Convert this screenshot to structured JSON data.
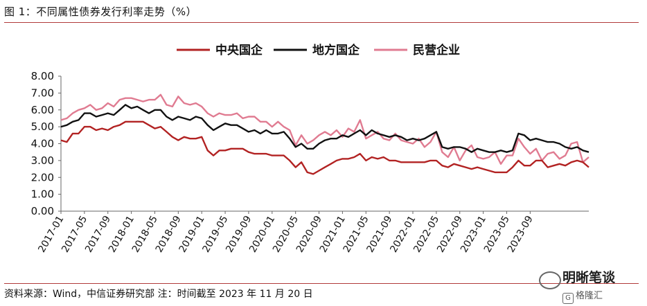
{
  "figure": {
    "title": "图 1：不同属性债券发行利率走势（%）",
    "source": "资料来源：Wind，中信证券研究部  注：时间截至 2023 年 11 月 20 日"
  },
  "watermark": {
    "name": "明晰笔谈",
    "sub": "格隆汇",
    "icon": "chat-bubble-icon"
  },
  "chart_data": {
    "type": "line",
    "title": "",
    "xlabel": "",
    "ylabel": "",
    "ylim": [
      0,
      8
    ],
    "yticks": [
      "0.00",
      "1.00",
      "2.00",
      "3.00",
      "4.00",
      "5.00",
      "6.00",
      "7.00",
      "8.00"
    ],
    "x_start": "2017-01",
    "xtick_labels": [
      "2017-01",
      "2017-05",
      "2017-09",
      "2018-01",
      "2018-05",
      "2018-09",
      "2019-01",
      "2019-05",
      "2019-09",
      "2020-01",
      "2020-05",
      "2020-09",
      "2021-01",
      "2021-05",
      "2021-09",
      "2022-01",
      "2022-05",
      "2022-09",
      "2023-01",
      "2023-05",
      "2023-09"
    ],
    "grid": false,
    "legend_position": "top-center",
    "series": [
      {
        "name": "中央国企",
        "color": "#b22222",
        "values": [
          4.2,
          4.1,
          4.6,
          4.6,
          5.0,
          5.0,
          4.8,
          4.9,
          4.8,
          5.0,
          5.1,
          5.3,
          5.3,
          5.3,
          5.3,
          5.1,
          4.9,
          5.0,
          4.7,
          4.4,
          4.2,
          4.4,
          4.3,
          4.3,
          4.4,
          3.6,
          3.3,
          3.6,
          3.6,
          3.7,
          3.7,
          3.7,
          3.5,
          3.4,
          3.4,
          3.4,
          3.3,
          3.3,
          3.3,
          3.0,
          2.6,
          2.9,
          2.3,
          2.2,
          2.4,
          2.6,
          2.8,
          3.0,
          3.1,
          3.1,
          3.2,
          3.4,
          3.0,
          3.2,
          3.1,
          3.2,
          3.0,
          3.0,
          2.9,
          2.9,
          2.9,
          2.9,
          2.9,
          3.0,
          3.0,
          2.7,
          2.6,
          2.8,
          2.7,
          2.6,
          2.5,
          2.6,
          2.5,
          2.4,
          2.3,
          2.3,
          2.3,
          2.6,
          3.0,
          2.7,
          2.7,
          3.0,
          3.0,
          2.6,
          2.7,
          2.8,
          2.7,
          2.9,
          3.0,
          2.9,
          2.6
        ]
      },
      {
        "name": "地方国企",
        "color": "#111111",
        "values": [
          5.0,
          5.1,
          5.3,
          5.4,
          5.8,
          5.8,
          5.6,
          5.7,
          5.8,
          5.7,
          6.0,
          6.3,
          6.1,
          6.2,
          6.0,
          5.8,
          6.0,
          6.0,
          5.6,
          5.4,
          5.6,
          5.5,
          5.4,
          5.6,
          5.5,
          5.1,
          4.8,
          5.0,
          5.2,
          5.1,
          5.1,
          4.9,
          4.7,
          4.8,
          4.6,
          4.8,
          4.6,
          4.6,
          4.7,
          4.3,
          3.8,
          4.0,
          3.7,
          3.7,
          4.0,
          4.2,
          4.3,
          4.3,
          4.5,
          4.4,
          4.6,
          4.8,
          4.5,
          4.8,
          4.6,
          4.5,
          4.4,
          4.5,
          4.4,
          4.2,
          4.3,
          4.2,
          4.3,
          4.5,
          4.7,
          3.8,
          3.7,
          3.8,
          3.8,
          3.7,
          3.5,
          3.7,
          3.6,
          3.5,
          3.5,
          3.6,
          3.5,
          3.6,
          4.6,
          4.5,
          4.2,
          4.3,
          4.2,
          4.1,
          4.1,
          4.0,
          3.8,
          3.7,
          3.8,
          3.6,
          3.5
        ]
      },
      {
        "name": "民营企业",
        "color": "#e07b91",
        "values": [
          5.4,
          5.5,
          5.8,
          6.0,
          6.1,
          6.3,
          6.0,
          6.1,
          6.4,
          6.2,
          6.6,
          6.7,
          6.7,
          6.6,
          6.5,
          6.6,
          6.6,
          6.9,
          6.3,
          6.2,
          6.8,
          6.4,
          6.3,
          6.4,
          6.2,
          5.8,
          5.6,
          5.8,
          5.7,
          5.7,
          5.8,
          5.5,
          5.6,
          5.6,
          5.3,
          5.3,
          5.0,
          5.3,
          5.0,
          4.8,
          3.9,
          4.5,
          4.0,
          4.2,
          4.5,
          4.7,
          4.5,
          4.8,
          4.4,
          4.9,
          4.7,
          5.4,
          4.3,
          4.5,
          4.7,
          4.3,
          4.2,
          4.6,
          4.2,
          4.1,
          4.0,
          4.3,
          3.8,
          4.1,
          4.7,
          3.5,
          3.2,
          3.8,
          3.0,
          3.6,
          3.9,
          3.2,
          3.1,
          3.2,
          3.5,
          2.8,
          3.3,
          3.3,
          4.3,
          3.8,
          3.4,
          3.7,
          3.0,
          3.4,
          3.5,
          3.1,
          3.3,
          4.0,
          4.1,
          2.9,
          3.2
        ]
      }
    ]
  }
}
